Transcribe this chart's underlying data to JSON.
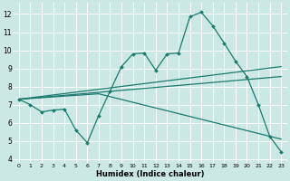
{
  "xlabel": "Humidex (Indice chaleur)",
  "x_ticks": [
    0,
    1,
    2,
    3,
    4,
    5,
    6,
    7,
    8,
    9,
    10,
    11,
    12,
    13,
    14,
    15,
    16,
    17,
    18,
    19,
    20,
    21,
    22,
    23
  ],
  "ylim": [
    3.8,
    12.6
  ],
  "yticks": [
    4,
    5,
    6,
    7,
    8,
    9,
    10,
    11,
    12
  ],
  "xlim": [
    -0.5,
    23.5
  ],
  "bg_color": "#cce8e4",
  "line_color": "#1a7a6e",
  "grid_color": "#ffffff",
  "line1_x": [
    0,
    1,
    2,
    3,
    4,
    5,
    6,
    7,
    8,
    9,
    10,
    11,
    12,
    13,
    14,
    15,
    16,
    17,
    18,
    19,
    20,
    21,
    22,
    23
  ],
  "line1_y": [
    7.3,
    7.0,
    6.6,
    6.7,
    6.75,
    5.6,
    4.9,
    6.4,
    7.75,
    9.1,
    9.8,
    9.85,
    8.9,
    9.8,
    9.85,
    11.85,
    12.1,
    11.35,
    10.4,
    9.4,
    8.55,
    7.0,
    5.25,
    4.4
  ],
  "line2_x": [
    0,
    23
  ],
  "line2_y": [
    7.3,
    9.1
  ],
  "line3_x": [
    0,
    7,
    23
  ],
  "line3_y": [
    7.3,
    7.6,
    5.1
  ],
  "line4_x": [
    0,
    23
  ],
  "line4_y": [
    7.3,
    8.55
  ]
}
